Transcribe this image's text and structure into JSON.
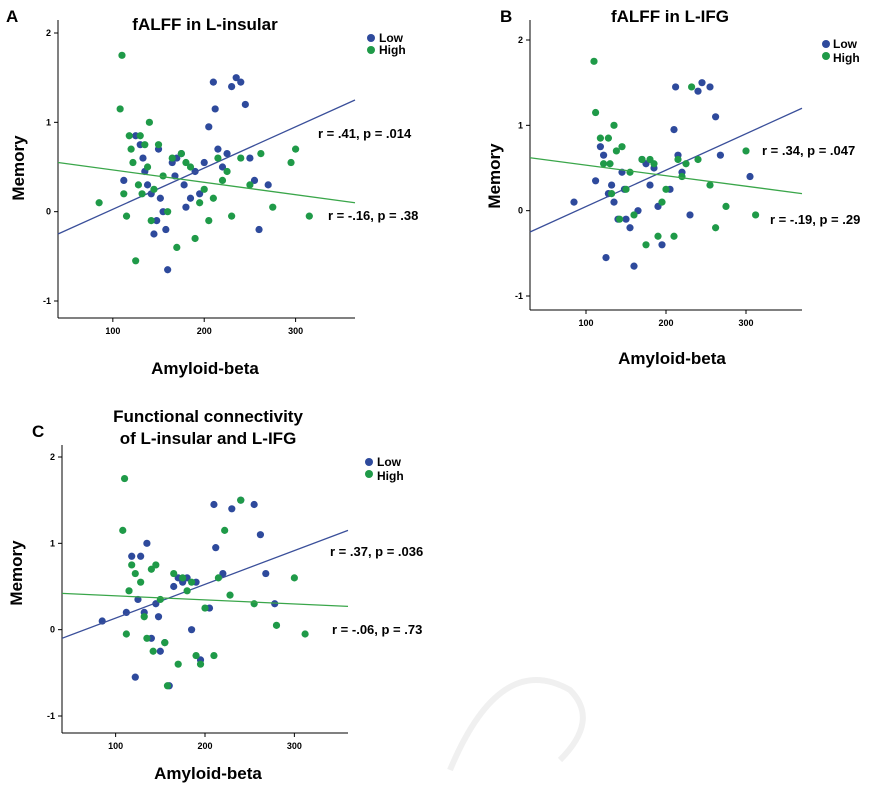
{
  "figure": {
    "colors": {
      "low": "#2e4a9c",
      "high": "#1f9a48",
      "low_line": "#3a4f9a",
      "high_line": "#3aa64a"
    }
  },
  "chart_data": [
    {
      "type": "scatter",
      "panel": "A",
      "title_lines": [
        "fALFF in L-insular"
      ],
      "xlabel": "Amyloid-beta",
      "ylabel": "Memory",
      "xlim": [
        40,
        365
      ],
      "ylim": [
        -1.2,
        2.2
      ],
      "xticks": [
        100,
        200,
        300
      ],
      "yticks": [
        -1,
        0,
        1,
        2
      ],
      "legend": [
        "Low",
        "High"
      ],
      "legend_position": "top-right",
      "series": [
        {
          "name": "Low",
          "color": "#2e4a9c",
          "x": [
            112,
            125,
            130,
            133,
            135,
            138,
            142,
            145,
            148,
            150,
            152,
            155,
            158,
            160,
            165,
            168,
            170,
            175,
            178,
            180,
            185,
            190,
            195,
            200,
            205,
            210,
            212,
            215,
            220,
            225,
            230,
            235,
            240,
            245,
            250,
            255,
            260,
            270
          ],
          "y": [
            0.35,
            0.85,
            0.75,
            0.6,
            0.45,
            0.3,
            0.2,
            -0.25,
            -0.1,
            0.7,
            0.15,
            0,
            -0.2,
            -0.65,
            0.55,
            0.4,
            0.6,
            0.65,
            0.3,
            0.05,
            0.15,
            0.45,
            0.2,
            0.55,
            0.95,
            1.45,
            1.15,
            0.7,
            0.5,
            0.65,
            1.4,
            1.5,
            1.45,
            1.2,
            0.6,
            0.35,
            -0.2,
            0.3
          ],
          "trend": {
            "x": [
              40,
              365
            ],
            "y": [
              -0.25,
              1.25
            ]
          },
          "annotation": "r = .41, p = .014"
        },
        {
          "name": "High",
          "color": "#1f9a48",
          "x": [
            85,
            108,
            110,
            112,
            115,
            118,
            120,
            122,
            125,
            128,
            130,
            132,
            135,
            138,
            140,
            142,
            145,
            150,
            155,
            160,
            165,
            170,
            175,
            180,
            185,
            190,
            195,
            200,
            205,
            210,
            215,
            220,
            225,
            230,
            240,
            250,
            262,
            275,
            295,
            300,
            315
          ],
          "y": [
            0.1,
            1.15,
            1.75,
            0.2,
            -0.05,
            0.85,
            0.7,
            0.55,
            -0.55,
            0.3,
            0.85,
            0.2,
            0.75,
            0.5,
            1.0,
            -0.1,
            0.25,
            0.75,
            0.4,
            0,
            0.6,
            -0.4,
            0.65,
            0.55,
            0.5,
            -0.3,
            0.1,
            0.25,
            -0.1,
            0.15,
            0.6,
            0.35,
            0.45,
            -0.05,
            0.6,
            0.3,
            0.65,
            0.05,
            0.55,
            0.7,
            -0.05
          ],
          "trend": {
            "x": [
              40,
              365
            ],
            "y": [
              0.55,
              0.1
            ]
          },
          "annotation": "r = -.16, p = .38"
        }
      ]
    },
    {
      "type": "scatter",
      "panel": "B",
      "title_lines": [
        "fALFF in L-IFG"
      ],
      "xlabel": "Amyloid-beta",
      "ylabel": "Memory",
      "xlim": [
        30,
        370
      ],
      "ylim": [
        -1.2,
        2.2
      ],
      "xticks": [
        100,
        200,
        300
      ],
      "yticks": [
        -1,
        0,
        1,
        2
      ],
      "legend": [
        "Low",
        "High"
      ],
      "legend_position": "top-right",
      "series": [
        {
          "name": "Low",
          "color": "#2e4a9c",
          "x": [
            85,
            112,
            118,
            122,
            125,
            128,
            132,
            135,
            140,
            145,
            148,
            150,
            155,
            160,
            165,
            170,
            175,
            180,
            185,
            190,
            195,
            205,
            210,
            212,
            215,
            220,
            230,
            240,
            245,
            255,
            262,
            268,
            305
          ],
          "y": [
            0.1,
            0.35,
            0.75,
            0.65,
            -0.55,
            0.2,
            0.3,
            0.1,
            -0.1,
            0.45,
            0.25,
            -0.1,
            -0.2,
            -0.65,
            0,
            0.6,
            0.55,
            0.3,
            0.5,
            0.05,
            -0.4,
            0.25,
            0.95,
            1.45,
            0.65,
            0.45,
            -0.05,
            1.4,
            1.5,
            1.45,
            1.1,
            0.65,
            0.4
          ],
          "trend": {
            "x": [
              30,
              370
            ],
            "y": [
              -0.25,
              1.2
            ]
          },
          "annotation": "r = .34, p = .047"
        },
        {
          "name": "High",
          "color": "#1f9a48",
          "x": [
            110,
            112,
            118,
            122,
            128,
            130,
            132,
            135,
            138,
            142,
            145,
            150,
            155,
            160,
            170,
            175,
            180,
            185,
            190,
            195,
            200,
            210,
            215,
            220,
            225,
            232,
            240,
            255,
            262,
            275,
            300,
            312
          ],
          "y": [
            1.75,
            1.15,
            0.85,
            0.55,
            0.85,
            0.55,
            0.2,
            1.0,
            0.7,
            -0.1,
            0.75,
            0.25,
            0.45,
            -0.05,
            0.6,
            -0.4,
            0.6,
            0.55,
            -0.3,
            0.1,
            0.25,
            -0.3,
            0.6,
            0.4,
            0.55,
            1.45,
            0.6,
            0.3,
            -0.2,
            0.05,
            0.7,
            -0.05
          ],
          "trend": {
            "x": [
              30,
              370
            ],
            "y": [
              0.62,
              0.2
            ]
          },
          "annotation": "r = -.19, p = .29"
        }
      ]
    },
    {
      "type": "scatter",
      "panel": "C",
      "title_lines": [
        "Functional connectivity",
        "of L-insular and L-IFG"
      ],
      "xlabel": "Amyloid-beta",
      "ylabel": "Memory",
      "xlim": [
        40,
        360
      ],
      "ylim": [
        -1.2,
        2.2
      ],
      "xticks": [
        100,
        200,
        300
      ],
      "yticks": [
        -1,
        0,
        1,
        2
      ],
      "legend": [
        "Low",
        "High"
      ],
      "legend_position": "top-right",
      "series": [
        {
          "name": "Low",
          "color": "#2e4a9c",
          "x": [
            85,
            112,
            118,
            122,
            125,
            128,
            132,
            135,
            140,
            145,
            148,
            150,
            155,
            160,
            165,
            170,
            175,
            180,
            185,
            190,
            195,
            205,
            210,
            212,
            220,
            230,
            240,
            255,
            262,
            268,
            278
          ],
          "y": [
            0.1,
            0.2,
            0.85,
            -0.55,
            0.35,
            0.85,
            0.2,
            1.0,
            -0.1,
            0.3,
            0.15,
            -0.25,
            -0.15,
            -0.65,
            0.5,
            0.6,
            0.55,
            0.6,
            0,
            0.55,
            -0.35,
            0.25,
            1.45,
            0.95,
            0.65,
            1.4,
            1.5,
            1.45,
            1.1,
            0.65,
            0.3
          ],
          "trend": {
            "x": [
              40,
              360
            ],
            "y": [
              -0.1,
              1.15
            ]
          },
          "annotation": "r = .37, p = .036"
        },
        {
          "name": "High",
          "color": "#1f9a48",
          "x": [
            108,
            110,
            112,
            115,
            118,
            122,
            128,
            132,
            135,
            140,
            142,
            145,
            150,
            155,
            158,
            165,
            170,
            175,
            180,
            185,
            190,
            195,
            200,
            210,
            215,
            222,
            228,
            240,
            255,
            280,
            300,
            312
          ],
          "y": [
            1.15,
            1.75,
            -0.05,
            0.45,
            0.75,
            0.65,
            0.55,
            0.15,
            -0.1,
            0.7,
            -0.25,
            0.75,
            0.35,
            -0.15,
            -0.65,
            0.65,
            -0.4,
            0.6,
            0.45,
            0.55,
            -0.3,
            -0.4,
            0.25,
            -0.3,
            0.6,
            1.15,
            0.4,
            1.5,
            0.3,
            0.05,
            0.6,
            -0.05
          ],
          "trend": {
            "x": [
              40,
              360
            ],
            "y": [
              0.42,
              0.27
            ]
          },
          "annotation": "r = -.06, p = .73"
        }
      ]
    }
  ]
}
